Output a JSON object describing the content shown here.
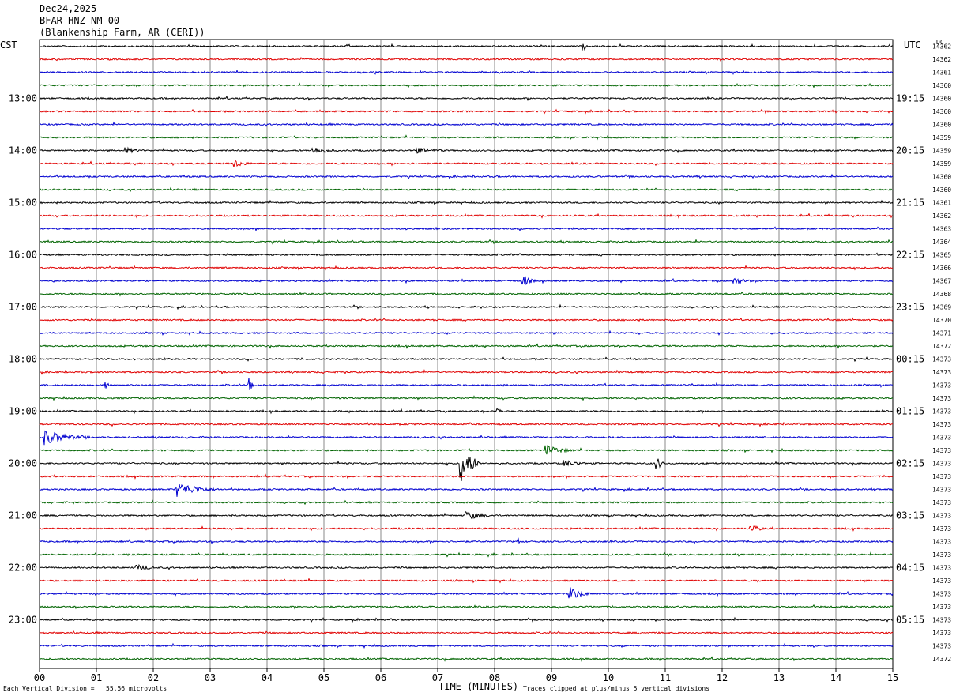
{
  "header": {
    "date": "Dec24,2025",
    "station": "BFAR HNZ NM 00",
    "location": "(Blankenship Farm, AR (CERI))"
  },
  "left_zone": "CST",
  "right_zone": "UTC",
  "dc_label": "DC",
  "footer": {
    "left": "Each Vertical Division =   55.56 microvolts",
    "center": "TIME (MINUTES)",
    "right": "Traces clipped at plus/minus 5 vertical divisions"
  },
  "colors": {
    "trace_cycle": [
      "#000000",
      "#e00000",
      "#0000d0",
      "#006400"
    ],
    "grid": "#888888"
  },
  "chart_data": {
    "type": "line",
    "title": "BFAR HNZ NM 00 helicorder",
    "xlabel": "TIME (MINUTES)",
    "x_range": [
      0,
      15
    ],
    "x_ticks": [
      "00",
      "01",
      "02",
      "03",
      "04",
      "05",
      "06",
      "07",
      "08",
      "09",
      "10",
      "11",
      "12",
      "13",
      "14",
      "15"
    ],
    "row_count": 48,
    "left_hour_labels": [
      {
        "row": 4,
        "label": "13:00"
      },
      {
        "row": 8,
        "label": "14:00"
      },
      {
        "row": 12,
        "label": "15:00"
      },
      {
        "row": 16,
        "label": "16:00"
      },
      {
        "row": 20,
        "label": "17:00"
      },
      {
        "row": 24,
        "label": "18:00"
      },
      {
        "row": 28,
        "label": "19:00"
      },
      {
        "row": 32,
        "label": "20:00"
      },
      {
        "row": 36,
        "label": "21:00"
      },
      {
        "row": 40,
        "label": "22:00"
      },
      {
        "row": 44,
        "label": "23:00"
      }
    ],
    "right_hour_labels": [
      {
        "row": 4,
        "label": "19:15"
      },
      {
        "row": 8,
        "label": "20:15"
      },
      {
        "row": 12,
        "label": "21:15"
      },
      {
        "row": 16,
        "label": "22:15"
      },
      {
        "row": 20,
        "label": "23:15"
      },
      {
        "row": 24,
        "label": "00:15"
      },
      {
        "row": 28,
        "label": "01:15"
      },
      {
        "row": 32,
        "label": "02:15"
      },
      {
        "row": 36,
        "label": "03:15"
      },
      {
        "row": 40,
        "label": "04:15"
      },
      {
        "row": 44,
        "label": "05:15"
      }
    ],
    "dc_offsets": [
      "14362",
      "14362",
      "14361",
      "14360",
      "14360",
      "14360",
      "14360",
      "14359",
      "14359",
      "14359",
      "14360",
      "14360",
      "14361",
      "14362",
      "14363",
      "14364",
      "14365",
      "14366",
      "14367",
      "14368",
      "14369",
      "14370",
      "14371",
      "14372",
      "14373",
      "14373",
      "14373",
      "14373",
      "14373",
      "14373",
      "14373",
      "14373",
      "14373",
      "14373",
      "14373",
      "14373",
      "14373",
      "14373",
      "14373",
      "14373",
      "14373",
      "14373",
      "14373",
      "14373",
      "14373",
      "14373",
      "14373",
      "14372"
    ],
    "events": [
      {
        "row": 0,
        "minute": 9.55,
        "amp": 16,
        "dur": 0.05
      },
      {
        "row": 8,
        "minute": 1.5,
        "amp": 4,
        "dur": 0.5
      },
      {
        "row": 8,
        "minute": 4.8,
        "amp": 5,
        "dur": 0.6
      },
      {
        "row": 8,
        "minute": 6.6,
        "amp": 4,
        "dur": 0.8
      },
      {
        "row": 9,
        "minute": 3.4,
        "amp": 6,
        "dur": 0.4
      },
      {
        "row": 18,
        "minute": 8.5,
        "amp": 10,
        "dur": 0.2
      },
      {
        "row": 18,
        "minute": 12.2,
        "amp": 5,
        "dur": 0.5
      },
      {
        "row": 26,
        "minute": 3.7,
        "amp": 12,
        "dur": 0.1
      },
      {
        "row": 26,
        "minute": 1.15,
        "amp": 8,
        "dur": 0.1
      },
      {
        "row": 28,
        "minute": 8.05,
        "amp": 6,
        "dur": 0.08
      },
      {
        "row": 30,
        "minute": 0.1,
        "amp": 10,
        "dur": 0.8
      },
      {
        "row": 31,
        "minute": 8.9,
        "amp": 7,
        "dur": 0.6
      },
      {
        "row": 32,
        "minute": 7.4,
        "amp": 28,
        "dur": 0.35
      },
      {
        "row": 32,
        "minute": 9.2,
        "amp": 5,
        "dur": 0.6
      },
      {
        "row": 32,
        "minute": 10.85,
        "amp": 9,
        "dur": 0.15
      },
      {
        "row": 34,
        "minute": 2.4,
        "amp": 10,
        "dur": 0.8
      },
      {
        "row": 36,
        "minute": 7.5,
        "amp": 6,
        "dur": 0.6
      },
      {
        "row": 37,
        "minute": 12.5,
        "amp": 6,
        "dur": 0.3
      },
      {
        "row": 38,
        "minute": 8.4,
        "amp": 8,
        "dur": 0.05
      },
      {
        "row": 40,
        "minute": 1.7,
        "amp": 4,
        "dur": 0.6
      },
      {
        "row": 42,
        "minute": 9.3,
        "amp": 10,
        "dur": 0.4
      }
    ]
  }
}
